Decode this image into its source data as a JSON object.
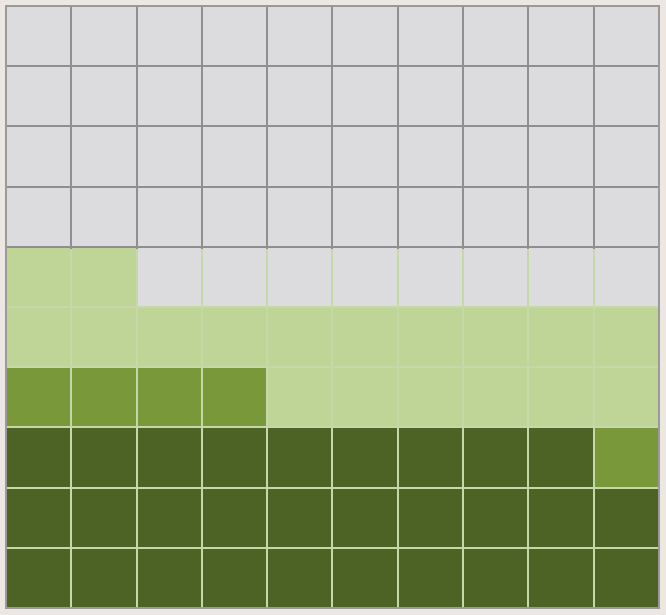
{
  "grid": {
    "columns": 10,
    "rows": 10,
    "palette": {
      "empty": "#dcdcdf",
      "light": "#bfd597",
      "medium": "#78983a",
      "dark": "#4d6326"
    },
    "gridline_colors": {
      "upper": "#8f8f8f",
      "lower": "#c7d8a8"
    },
    "cells": [
      [
        "empty",
        "empty",
        "empty",
        "empty",
        "empty",
        "empty",
        "empty",
        "empty",
        "empty",
        "empty"
      ],
      [
        "empty",
        "empty",
        "empty",
        "empty",
        "empty",
        "empty",
        "empty",
        "empty",
        "empty",
        "empty"
      ],
      [
        "empty",
        "empty",
        "empty",
        "empty",
        "empty",
        "empty",
        "empty",
        "empty",
        "empty",
        "empty"
      ],
      [
        "empty",
        "empty",
        "empty",
        "empty",
        "empty",
        "empty",
        "empty",
        "empty",
        "empty",
        "empty"
      ],
      [
        "light",
        "light",
        "empty",
        "empty",
        "empty",
        "empty",
        "empty",
        "empty",
        "empty",
        "empty"
      ],
      [
        "light",
        "light",
        "light",
        "light",
        "light",
        "light",
        "light",
        "light",
        "light",
        "light"
      ],
      [
        "medium",
        "medium",
        "medium",
        "medium",
        "light",
        "light",
        "light",
        "light",
        "light",
        "light"
      ],
      [
        "dark",
        "dark",
        "dark",
        "dark",
        "dark",
        "dark",
        "dark",
        "dark",
        "dark",
        "medium"
      ],
      [
        "dark",
        "dark",
        "dark",
        "dark",
        "dark",
        "dark",
        "dark",
        "dark",
        "dark",
        "dark"
      ],
      [
        "dark",
        "dark",
        "dark",
        "dark",
        "dark",
        "dark",
        "dark",
        "dark",
        "dark",
        "dark"
      ]
    ]
  }
}
